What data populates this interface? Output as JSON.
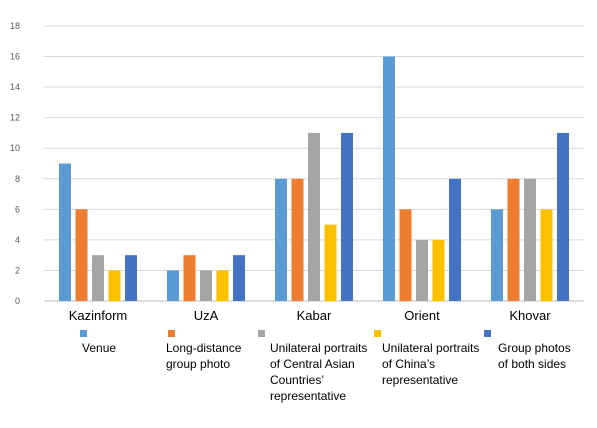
{
  "chart_data": {
    "type": "bar",
    "title": "",
    "xlabel": "",
    "ylabel": "",
    "ylim": [
      0,
      18
    ],
    "yticks": [
      0,
      2,
      4,
      6,
      8,
      10,
      12,
      14,
      16,
      18
    ],
    "grid": true,
    "legend_position": "bottom",
    "categories": [
      "Kazinform",
      "UzA",
      "Kabar",
      "Orient",
      "Khovar"
    ],
    "series": [
      {
        "name": "Venue",
        "color": "#5B9BD5",
        "values": [
          9,
          2,
          8,
          16,
          6
        ]
      },
      {
        "name": "Long-distance group photo",
        "color": "#ED7D31",
        "values": [
          6,
          3,
          8,
          6,
          8
        ]
      },
      {
        "name": "Unilateral portraits of Central Asian Countries’ representative",
        "color": "#A5A5A5",
        "values": [
          3,
          2,
          11,
          4,
          8
        ]
      },
      {
        "name": "Unilateral portraits of China’s representative",
        "color": "#FFC000",
        "values": [
          2,
          2,
          5,
          4,
          6
        ]
      },
      {
        "name": "Group photos of both sides",
        "color": "#4472C4",
        "values": [
          3,
          3,
          11,
          8,
          11
        ]
      }
    ]
  }
}
